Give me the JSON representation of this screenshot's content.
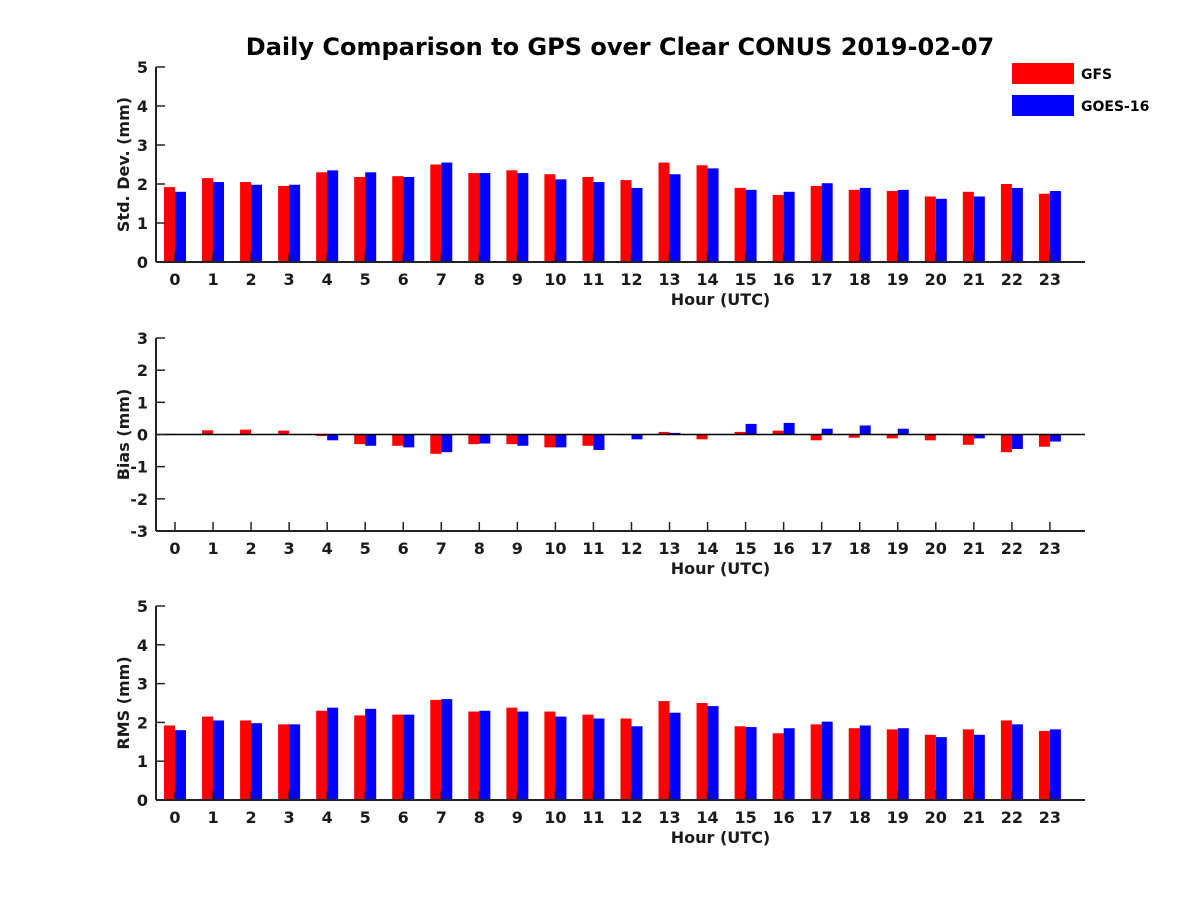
{
  "chart_data": {
    "type": "bar",
    "title": "Daily Comparison to GPS over Clear CONUS 2019-02-07",
    "categories": [
      "0",
      "1",
      "2",
      "3",
      "4",
      "5",
      "6",
      "7",
      "8",
      "9",
      "10",
      "11",
      "12",
      "13",
      "14",
      "15",
      "16",
      "17",
      "18",
      "19",
      "20",
      "21",
      "22",
      "23"
    ],
    "legend": {
      "position": "top-right",
      "entries": [
        {
          "name": "GFS",
          "color": "#ff0000"
        },
        {
          "name": "GOES-16",
          "color": "#0000ff"
        }
      ]
    },
    "panels": [
      {
        "ylabel": "Std. Dev. (mm)",
        "xlabel": "Hour (UTC)",
        "ylim": [
          0,
          5
        ],
        "yticks": [
          0,
          1,
          2,
          3,
          4,
          5
        ],
        "series": [
          {
            "name": "GFS",
            "color": "#ff0000",
            "values": [
              1.92,
              2.15,
              2.05,
              1.95,
              2.3,
              2.18,
              2.2,
              2.5,
              2.28,
              2.35,
              2.25,
              2.18,
              2.1,
              2.55,
              2.48,
              1.9,
              1.72,
              1.95,
              1.85,
              1.82,
              1.68,
              1.8,
              2.0,
              1.75
            ]
          },
          {
            "name": "GOES-16",
            "color": "#0000ff",
            "values": [
              1.8,
              2.05,
              1.98,
              1.98,
              2.35,
              2.3,
              2.18,
              2.55,
              2.28,
              2.28,
              2.12,
              2.05,
              1.9,
              2.25,
              2.4,
              1.85,
              1.8,
              2.02,
              1.9,
              1.85,
              1.62,
              1.68,
              1.9,
              1.82
            ]
          }
        ]
      },
      {
        "ylabel": "Bias (mm)",
        "xlabel": "Hour (UTC)",
        "ylim": [
          -3,
          3
        ],
        "yticks": [
          -3,
          -2,
          -1,
          0,
          1,
          2,
          3
        ],
        "zero_line": true,
        "series": [
          {
            "name": "GFS",
            "color": "#ff0000",
            "values": [
              0.02,
              0.13,
              0.15,
              0.12,
              -0.05,
              -0.3,
              -0.35,
              -0.6,
              -0.3,
              -0.3,
              -0.4,
              -0.35,
              -0.02,
              0.08,
              -0.15,
              0.08,
              0.12,
              -0.18,
              -0.1,
              -0.12,
              -0.18,
              -0.32,
              -0.55,
              -0.38
            ]
          },
          {
            "name": "GOES-16",
            "color": "#0000ff",
            "values": [
              0.0,
              0.0,
              0.0,
              0.0,
              -0.18,
              -0.35,
              -0.4,
              -0.55,
              -0.28,
              -0.35,
              -0.4,
              -0.48,
              -0.15,
              0.05,
              0.0,
              0.33,
              0.36,
              0.18,
              0.28,
              0.18,
              0.02,
              -0.12,
              -0.45,
              -0.22
            ]
          }
        ]
      },
      {
        "ylabel": "RMS (mm)",
        "xlabel": "Hour (UTC)",
        "ylim": [
          0,
          5
        ],
        "yticks": [
          0,
          1,
          2,
          3,
          4,
          5
        ],
        "series": [
          {
            "name": "GFS",
            "color": "#ff0000",
            "values": [
              1.92,
              2.15,
              2.05,
              1.95,
              2.3,
              2.18,
              2.2,
              2.58,
              2.28,
              2.38,
              2.28,
              2.2,
              2.1,
              2.55,
              2.5,
              1.9,
              1.72,
              1.95,
              1.85,
              1.82,
              1.68,
              1.82,
              2.05,
              1.78
            ]
          },
          {
            "name": "GOES-16",
            "color": "#0000ff",
            "values": [
              1.8,
              2.05,
              1.98,
              1.95,
              2.38,
              2.35,
              2.2,
              2.6,
              2.3,
              2.28,
              2.15,
              2.1,
              1.9,
              2.25,
              2.42,
              1.88,
              1.85,
              2.02,
              1.92,
              1.85,
              1.62,
              1.68,
              1.95,
              1.82
            ]
          }
        ]
      }
    ]
  }
}
